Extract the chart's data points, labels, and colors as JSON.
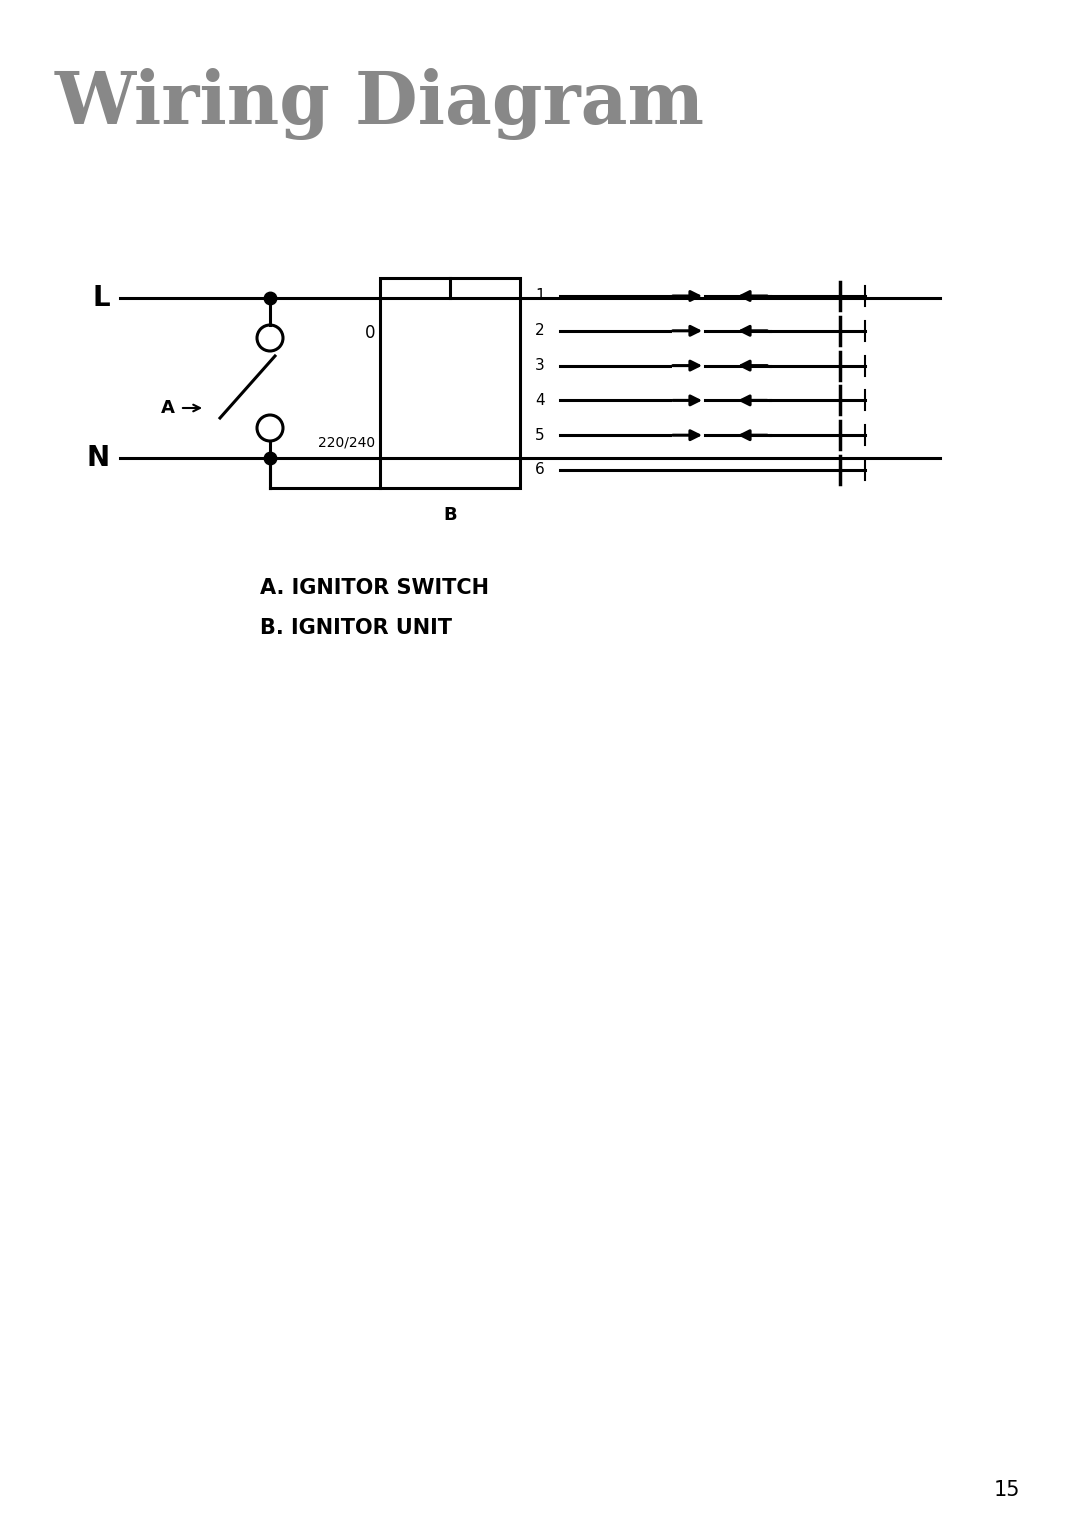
{
  "title": "Wiring Diagram",
  "title_color": "#888888",
  "title_fontsize": 48,
  "bg_color": "#ffffff",
  "line_color": "#000000",
  "label_A": "A",
  "label_L": "L",
  "label_N": "N",
  "label_0": "0",
  "label_220": "220/240",
  "label_B": "B",
  "port_labels": [
    "1",
    "2",
    "3",
    "4",
    "5",
    "6"
  ],
  "caption_a": "A. IGNITOR SWITCH",
  "caption_b": "B. IGNITOR UNIT",
  "page_number": "15"
}
